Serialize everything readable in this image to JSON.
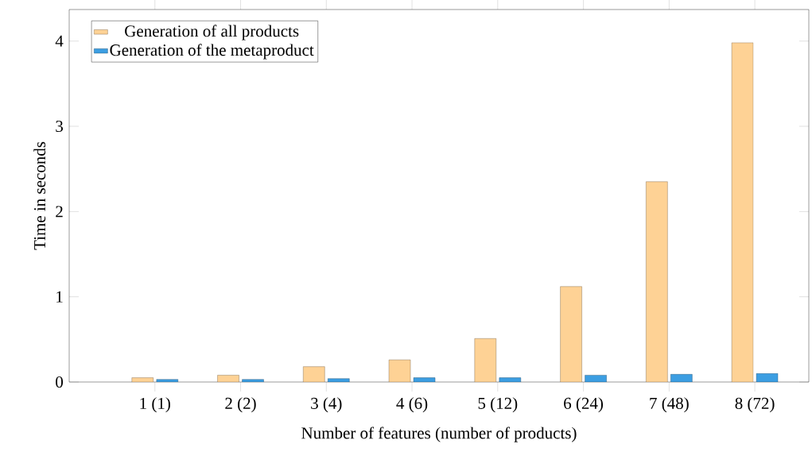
{
  "chart_data": {
    "type": "bar",
    "xlabel": "Number of features (number of products)",
    "ylabel": "Time in seconds",
    "categories": [
      "1 (1)",
      "2 (2)",
      "3 (4)",
      "4 (6)",
      "5 (12)",
      "6 (24)",
      "7 (48)",
      "8 (72)"
    ],
    "series": [
      {
        "name": "Generation of all products",
        "color": "#fed295",
        "values": [
          0.05,
          0.08,
          0.18,
          0.26,
          0.51,
          1.12,
          2.35,
          3.98
        ]
      },
      {
        "name": "Generation of the metaproduct",
        "color": "#3c9ee2",
        "values": [
          0.03,
          0.03,
          0.04,
          0.05,
          0.05,
          0.08,
          0.09,
          0.1
        ]
      }
    ],
    "ylim": [
      0,
      4.37
    ],
    "yticks": [
      0,
      1,
      2,
      3,
      4
    ],
    "legend": "top left"
  }
}
